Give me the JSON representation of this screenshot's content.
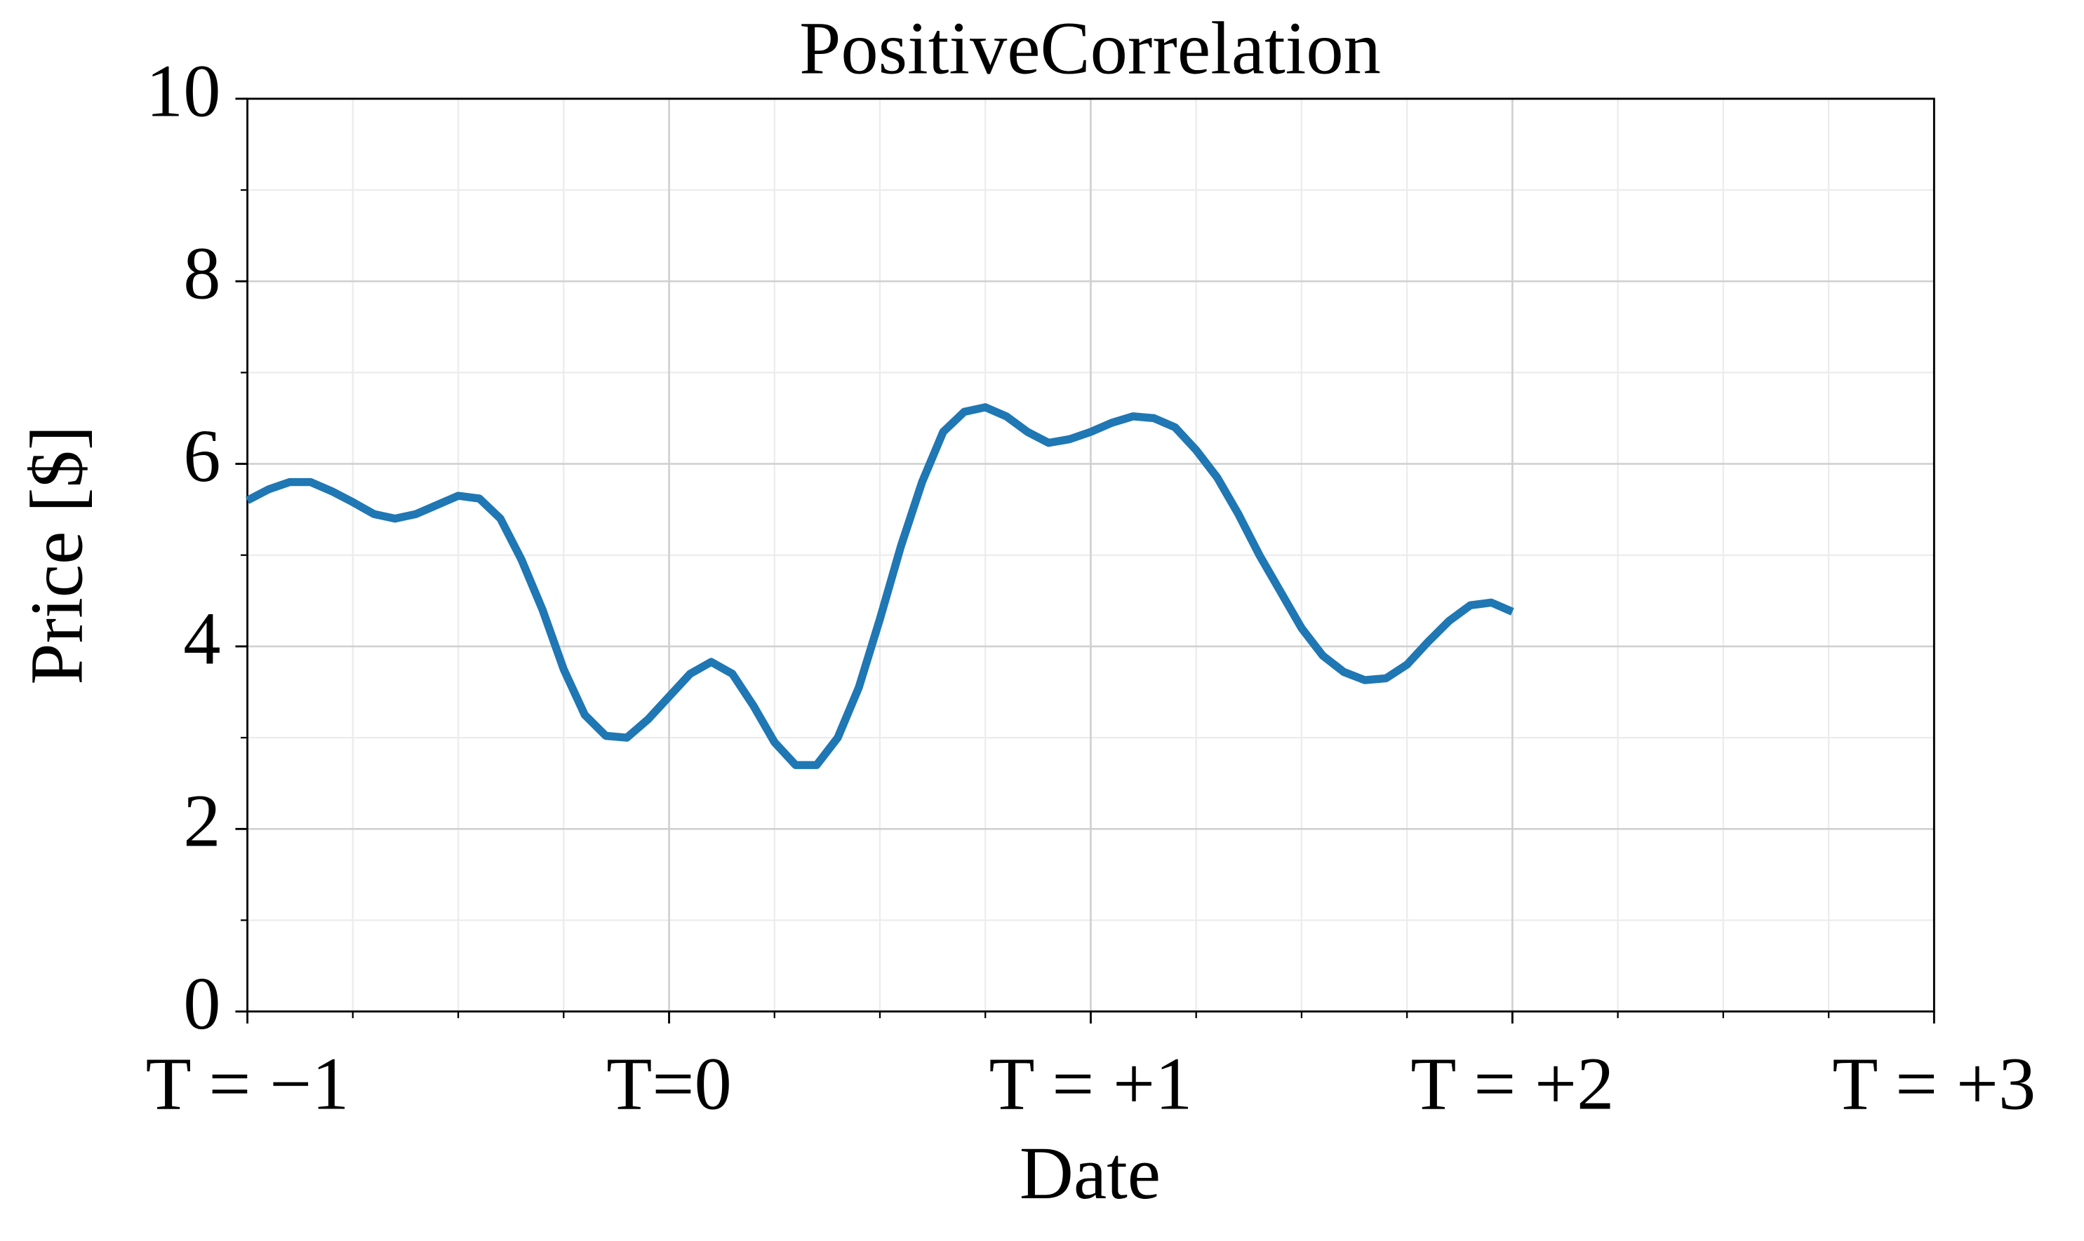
{
  "chart_data": {
    "type": "line",
    "title": "PositiveCorrelation",
    "x_label": "Date",
    "y_label": "Price [$]",
    "x": [
      -1.0,
      -0.95,
      -0.9,
      -0.85,
      -0.8,
      -0.75,
      -0.7,
      -0.65,
      -0.6,
      -0.55,
      -0.5,
      -0.45,
      -0.4,
      -0.35,
      -0.3,
      -0.25,
      -0.2,
      -0.15,
      -0.1,
      -0.05,
      0.0,
      0.05,
      0.1,
      0.15,
      0.2,
      0.25,
      0.3,
      0.35,
      0.4,
      0.45,
      0.5,
      0.55,
      0.6,
      0.65,
      0.7,
      0.75,
      0.8,
      0.85,
      0.9,
      0.95,
      1.0,
      1.05,
      1.1,
      1.15,
      1.2,
      1.25,
      1.3,
      1.35,
      1.4,
      1.45,
      1.5,
      1.55,
      1.6,
      1.65,
      1.7,
      1.75,
      1.8,
      1.85,
      1.9,
      1.95,
      2.0
    ],
    "series": [
      {
        "color": "#1f77b4",
        "values": [
          5.6,
          5.72,
          5.8,
          5.8,
          5.7,
          5.58,
          5.45,
          5.4,
          5.45,
          5.55,
          5.65,
          5.62,
          5.4,
          4.95,
          4.4,
          3.75,
          3.25,
          3.02,
          3.0,
          3.2,
          3.45,
          3.7,
          3.83,
          3.7,
          3.35,
          2.95,
          2.7,
          2.7,
          3.0,
          3.55,
          4.3,
          5.1,
          5.8,
          6.35,
          6.57,
          6.62,
          6.52,
          6.35,
          6.23,
          6.27,
          6.35,
          6.45,
          6.52,
          6.5,
          6.4,
          6.15,
          5.85,
          5.45,
          5.0,
          4.6,
          4.2,
          3.9,
          3.72,
          3.63,
          3.65,
          3.8,
          4.05,
          4.28,
          4.45,
          4.48,
          4.38
        ]
      }
    ],
    "xlim": [
      -1,
      3
    ],
    "ylim": [
      0,
      10
    ],
    "xticks": [
      {
        "value": -1,
        "label": "T = −1"
      },
      {
        "value": 0,
        "label": "T=0"
      },
      {
        "value": 1,
        "label": "T = +1"
      },
      {
        "value": 2,
        "label": "T = +2"
      },
      {
        "value": 3,
        "label": "T = +3"
      }
    ],
    "yticks": [
      0,
      2,
      4,
      6,
      8,
      10
    ],
    "xminor": [
      -0.75,
      -0.5,
      -0.25,
      0.25,
      0.5,
      0.75,
      1.25,
      1.5,
      1.75,
      2.25,
      2.5,
      2.75
    ],
    "yminor": [
      1,
      3,
      5,
      7,
      9
    ],
    "grid": true
  }
}
